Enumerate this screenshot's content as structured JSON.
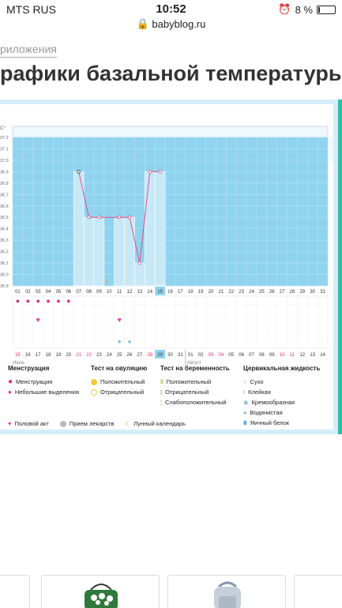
{
  "status": {
    "carrier": "MTS RUS",
    "time": "10:52",
    "battery": "8 %"
  },
  "browser": {
    "url": "babyblog.ru"
  },
  "breadcrumb": "риложения",
  "page_title": "рафики базальной температуры",
  "chart_data": {
    "type": "line",
    "unit_label": "C°",
    "y_ticks": [
      "37.2",
      "37.1",
      "37.0",
      "36.9",
      "36.8",
      "36.7",
      "36.6",
      "36.5",
      "36.4",
      "36.3",
      "36.2",
      "36.1",
      "36.0",
      "35.9"
    ],
    "ylim": [
      35.9,
      37.2
    ],
    "cycle_days": [
      "01",
      "02",
      "03",
      "04",
      "05",
      "06",
      "07",
      "08",
      "09",
      "10",
      "11",
      "12",
      "13",
      "14",
      "15",
      "16",
      "17",
      "18",
      "19",
      "20",
      "21",
      "22",
      "23",
      "24",
      "25",
      "26",
      "27",
      "28",
      "29",
      "30",
      "31"
    ],
    "highlight_cycle_day": "15",
    "series": [
      {
        "values": [
          {
            "day": 7,
            "temp": 36.9
          },
          {
            "day": 8,
            "temp": 36.5
          },
          {
            "day": 9,
            "temp": 36.5
          },
          {
            "day": 11,
            "temp": 36.5
          },
          {
            "day": 12,
            "temp": 36.5
          },
          {
            "day": 13,
            "temp": 36.1
          },
          {
            "day": 14,
            "temp": 36.9
          },
          {
            "day": 15,
            "temp": 36.9
          }
        ]
      }
    ],
    "dates": [
      "15",
      "16",
      "17",
      "18",
      "19",
      "20",
      "21",
      "22",
      "23",
      "24",
      "25",
      "26",
      "27",
      "28",
      "29",
      "30",
      "31",
      "01",
      "02",
      "03",
      "04",
      "05",
      "06",
      "07",
      "08",
      "09",
      "10",
      "11",
      "12",
      "13",
      "14"
    ],
    "weekend_date_indices": [
      0,
      6,
      7,
      13,
      19,
      20,
      26,
      27
    ],
    "today_date_index": 14,
    "month_labels": {
      "first": "Июль",
      "second": "Август"
    },
    "menstruation_days": [
      1,
      2,
      3,
      4,
      5,
      6
    ],
    "heart_days": [
      3,
      11
    ],
    "moon_day": 10,
    "drop_days": [
      11,
      12
    ]
  },
  "legend": {
    "menstruation": {
      "title": "Менструация",
      "items": [
        "Менструация",
        "Небольшие выделения"
      ]
    },
    "ovulation": {
      "title": "Тест на овуляцию",
      "items": [
        "Положительный",
        "Отрицательный"
      ]
    },
    "pregnancy": {
      "title": "Тест на беременность",
      "items": [
        "Положительный",
        "Отрицательный",
        "Слабоположительный"
      ]
    },
    "cervical": {
      "title": "Цервикальная жидкость",
      "items": [
        "Сухо",
        "Клейкая",
        "Кремообразная",
        "Водянистая",
        "Яичный белок"
      ]
    },
    "bottom": [
      "Половой акт",
      "Прием лекарств",
      "Лунный календарь"
    ]
  },
  "colors": {
    "chart_bg": "#8fd3ef",
    "bar": "#c7e9f7",
    "line": "#e0508a",
    "weekend": "#e0306a",
    "accent": "#2bbfa8"
  }
}
